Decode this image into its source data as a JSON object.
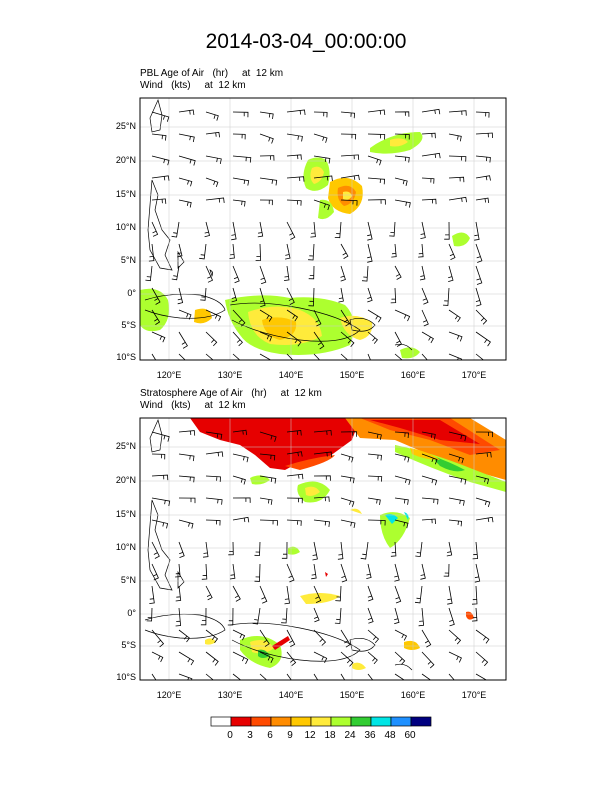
{
  "title": "2014-03-04_00:00:00",
  "panels": [
    {
      "name": "pbl",
      "field_label": "PBL Age of Air",
      "field_units": "(hr)",
      "field_level": "at  12 km",
      "wind_label": "Wind",
      "wind_units": "(kts)",
      "wind_level": "at  12 km"
    },
    {
      "name": "stratosphere",
      "field_label": "Stratosphere Age of Air",
      "field_units": "(hr)",
      "field_level": "at  12 km",
      "wind_label": "Wind",
      "wind_units": "(kts)",
      "wind_level": "at  12 km"
    }
  ],
  "lat_labels": [
    "25°N",
    "20°N",
    "15°N",
    "10°N",
    "5°N",
    "0°",
    "5°S",
    "10°S"
  ],
  "lon_labels": [
    "120°E",
    "130°E",
    "140°E",
    "150°E",
    "160°E",
    "170°E"
  ],
  "colorbar": {
    "labels": [
      "0",
      "3",
      "6",
      "9",
      "12",
      "18",
      "24",
      "36",
      "48",
      "60"
    ],
    "colors": [
      "#ffffff",
      "#e60000",
      "#ff4a00",
      "#ff8c00",
      "#ffc800",
      "#ffeb3b",
      "#adff2f",
      "#32cd32",
      "#00e5e5",
      "#1e90ff",
      "#000080"
    ]
  }
}
